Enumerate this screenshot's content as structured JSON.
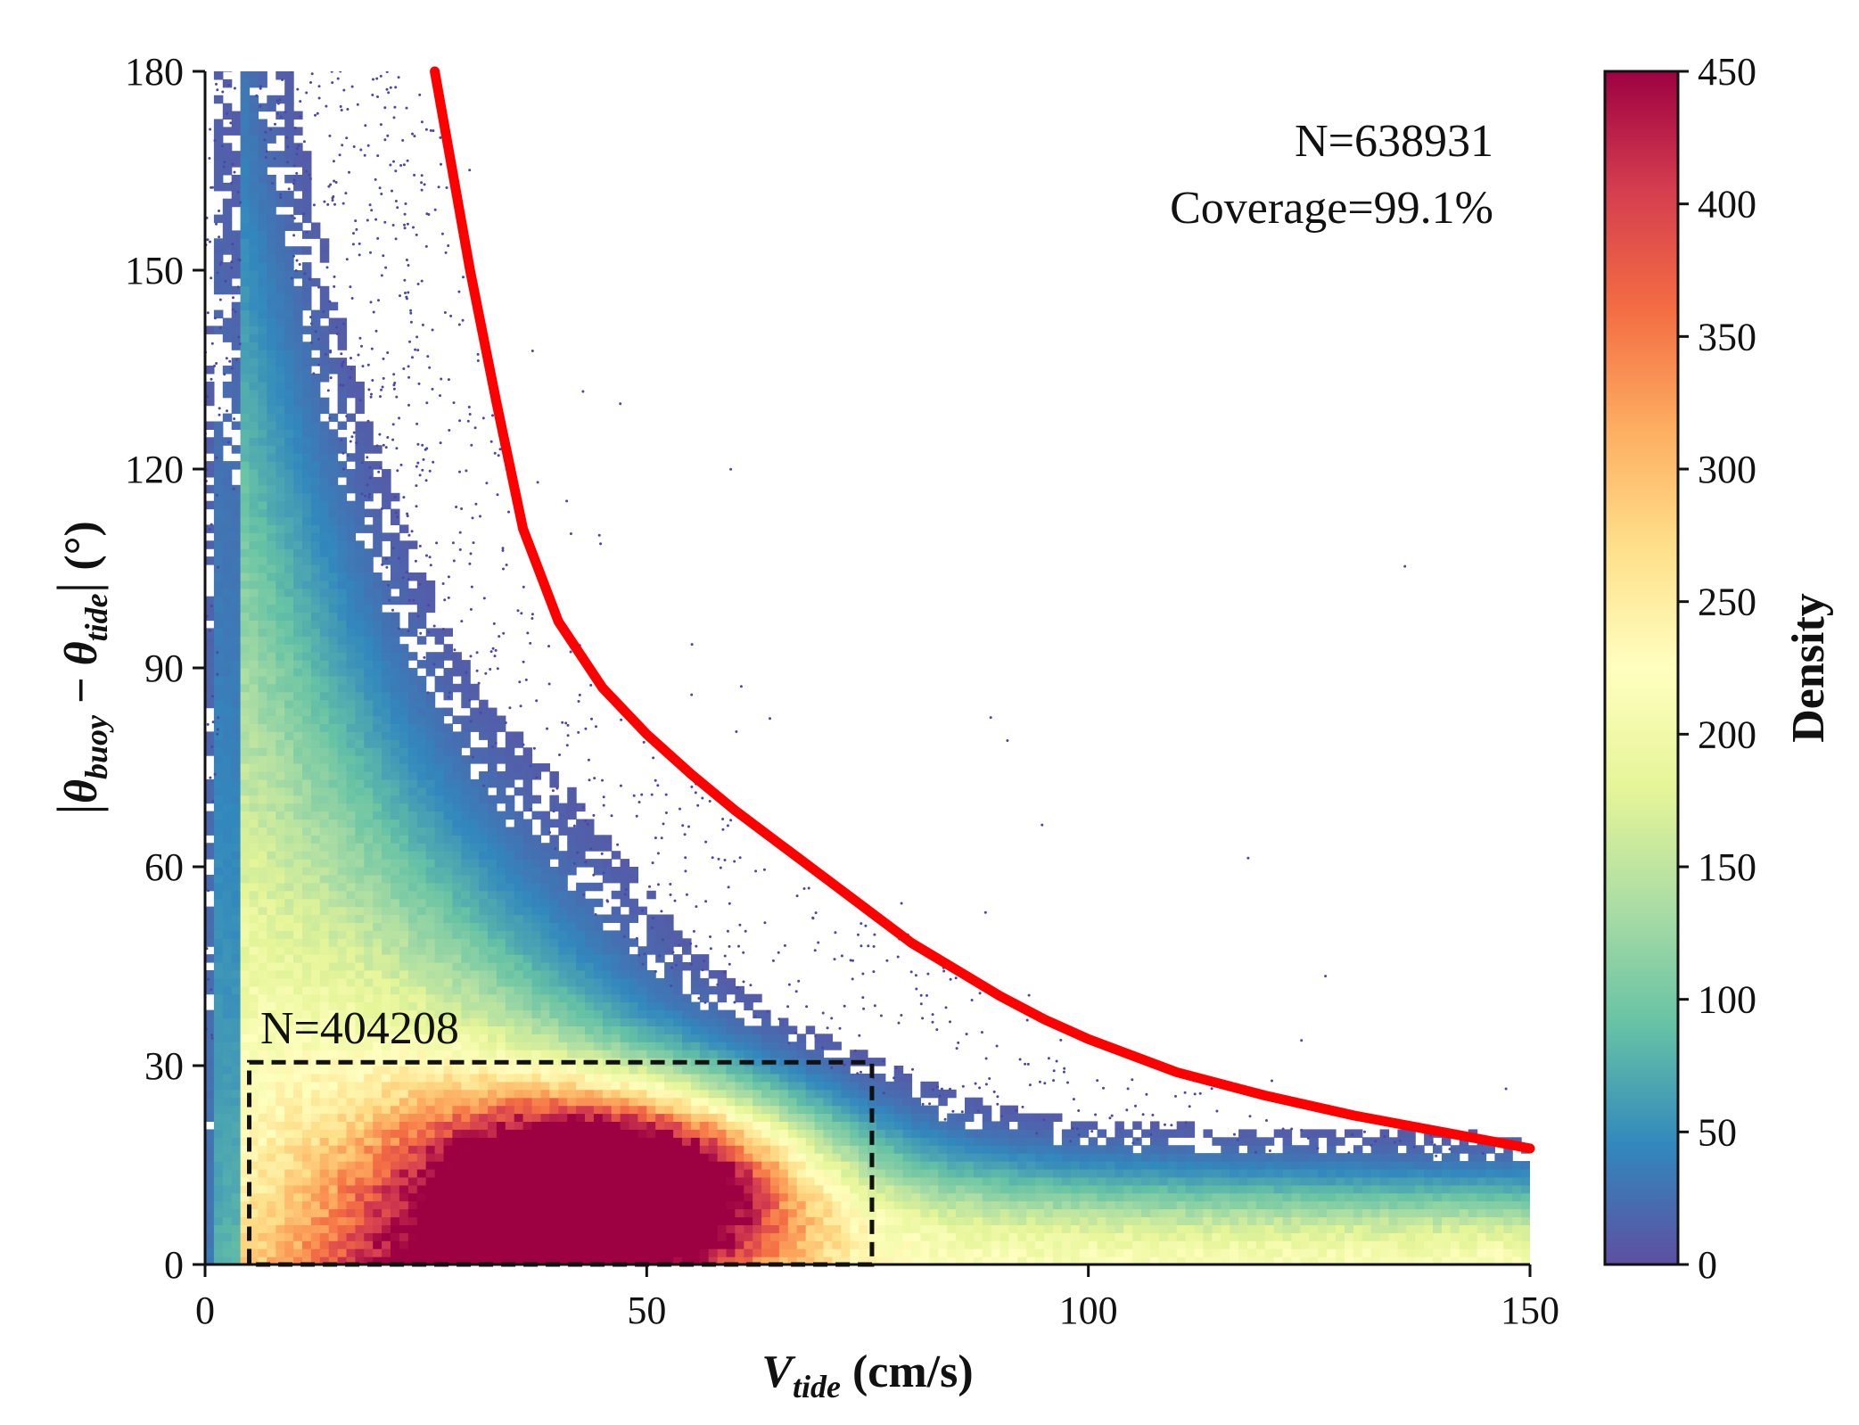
{
  "chart_data": {
    "type": "scatter",
    "subtype": "density-scatter",
    "xlabel": {
      "main": "V",
      "sub": "tide",
      "unit": " (cm/s)"
    },
    "ylabel": {
      "open": "|",
      "sym1": "θ",
      "sub1": "buoy",
      "minus": " − ",
      "sym2": "θ",
      "sub2": "tide",
      "close": "|",
      "unit": " (°)"
    },
    "xlim": [
      0,
      150
    ],
    "ylim": [
      0,
      180
    ],
    "xticks": [
      "0",
      "50",
      "100",
      "150"
    ],
    "yticks": [
      "0",
      "30",
      "60",
      "90",
      "120",
      "150",
      "180"
    ],
    "grid": false,
    "annotations": {
      "total": "N=638931",
      "coverage": "Coverage=99.1%",
      "box_count": "N=404208"
    },
    "dashed_box": {
      "x0": 5,
      "x1": 75.5,
      "y0": 0,
      "y1": 30.5
    },
    "envelope_curve": {
      "color": "#ff0000",
      "points": [
        [
          26,
          180
        ],
        [
          28,
          165
        ],
        [
          30,
          150
        ],
        [
          33,
          130
        ],
        [
          36,
          111
        ],
        [
          40,
          97
        ],
        [
          45,
          87
        ],
        [
          50,
          80
        ],
        [
          55,
          74
        ],
        [
          60,
          68.5
        ],
        [
          65,
          63.5
        ],
        [
          70,
          58.5
        ],
        [
          75,
          53.5
        ],
        [
          80,
          48.5
        ],
        [
          85,
          44.5
        ],
        [
          90,
          40.5
        ],
        [
          95,
          37
        ],
        [
          100,
          34
        ],
        [
          110,
          29
        ],
        [
          120,
          25.5
        ],
        [
          130,
          22.5
        ],
        [
          140,
          20
        ],
        [
          150,
          17.5
        ]
      ]
    },
    "density_core": {
      "peak": [
        47,
        12
      ],
      "description_of_ridge": "highest density at x 30–60, y 5–20; falls off toward larger angle and speed"
    },
    "colorbar": {
      "title": "Density",
      "min": 0,
      "max": 450,
      "ticks": [
        "0",
        "50",
        "100",
        "150",
        "200",
        "250",
        "300",
        "350",
        "400",
        "450"
      ],
      "colormap": "Spectral_r",
      "stops": [
        "#5e4fa2",
        "#3288bd",
        "#66c2a5",
        "#abdda4",
        "#e6f598",
        "#ffffbf",
        "#fee08b",
        "#fdae61",
        "#f46d43",
        "#d53e4f",
        "#9e0142"
      ]
    }
  }
}
